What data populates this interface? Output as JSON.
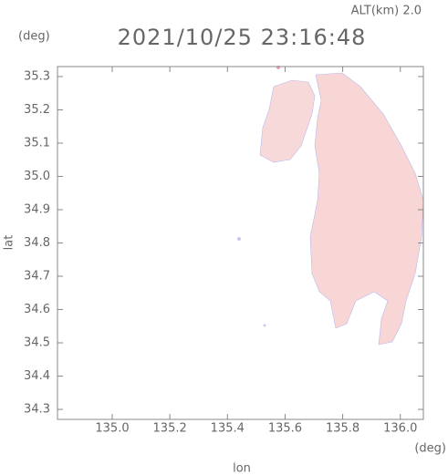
{
  "chart_data": {
    "type": "map",
    "title": "2021/10/25 23:16:48",
    "subtitle": "ALT(km) 2.0",
    "y_unit": "(deg)",
    "x_unit": "(deg)",
    "xlabel": "lon",
    "ylabel": "lat",
    "xlim": [
      134.81,
      136.08
    ],
    "ylim": [
      34.27,
      35.33
    ],
    "xticks": [
      {
        "value": 135.0,
        "label": "135.0"
      },
      135.2,
      135.4,
      135.6,
      135.8,
      {
        "value": 136.0,
        "label": "136.0"
      }
    ],
    "yticks": [
      34.3,
      34.4,
      34.5,
      34.6,
      34.7,
      34.8,
      34.9,
      {
        "value": 35.0,
        "label": "35.0"
      },
      35.1,
      35.2,
      35.3
    ]
  }
}
